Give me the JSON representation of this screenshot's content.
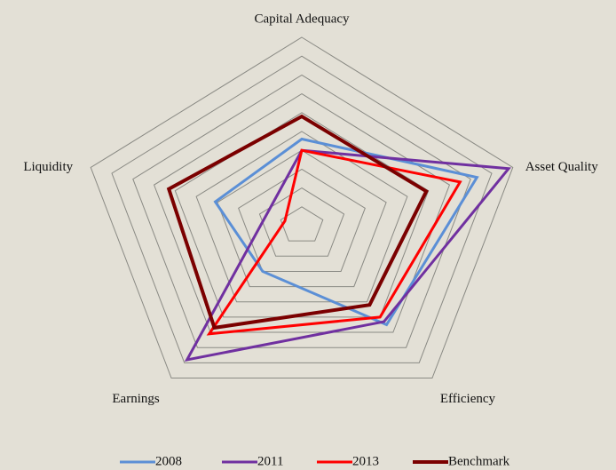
{
  "chart_data": {
    "type": "radar",
    "categories": [
      "Capital Adequacy",
      "Asset Quality",
      "Efficiency",
      "Earnings",
      "Liquidity"
    ],
    "series": [
      {
        "name": "2008",
        "color": "#5b8fd6",
        "values": [
          4.6,
          8.3,
          6.5,
          3.0,
          4.1
        ]
      },
      {
        "name": "2011",
        "color": "#7030a0",
        "values": [
          4.0,
          9.8,
          6.3,
          8.8,
          1.7
        ]
      },
      {
        "name": "2013",
        "color": "#ff0000",
        "values": [
          4.0,
          7.5,
          6.0,
          7.1,
          0.8
        ]
      },
      {
        "name": "Benchmark",
        "color": "#7b0000",
        "values": [
          5.8,
          5.9,
          5.2,
          6.7,
          6.3
        ]
      }
    ],
    "rlim": [
      0,
      10
    ],
    "rticks": [
      1,
      2,
      3,
      4,
      5,
      6,
      7,
      8,
      9,
      10
    ],
    "grid": true,
    "legend": "bottom"
  }
}
